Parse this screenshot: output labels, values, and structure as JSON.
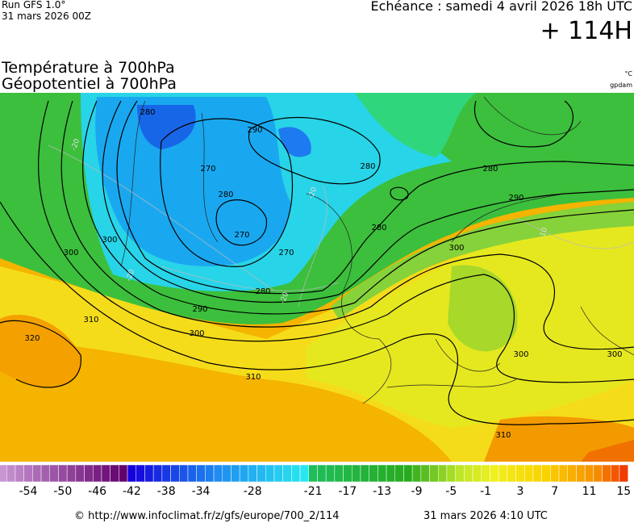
{
  "header": {
    "run": "Run GFS 1.0°",
    "run_date": "31 mars 2026 00Z",
    "valid": "Echéance : samedi 4 avril 2026 18h UTC",
    "lead": "+ 114H"
  },
  "titles": {
    "temperature": "Température à 700hPa",
    "geopotential": "Géopotentiel à 700hPa",
    "temp_unit": "°C",
    "geo_unit": "gpdam"
  },
  "contour_labels": [
    "280",
    "270",
    "280",
    "290",
    "270",
    "270",
    "280",
    "290",
    "300",
    "310",
    "320",
    "280",
    "280",
    "280",
    "290",
    "300",
    "300",
    "300",
    "310",
    "310",
    "300",
    "300"
  ],
  "isotherm_labels": [
    "-20",
    "-20",
    "-20",
    "-20",
    "-10"
  ],
  "scale_labels": [
    -54,
    -50,
    -46,
    -42,
    -38,
    -34,
    -28,
    -21,
    -17,
    -13,
    -9,
    -5,
    -1,
    3,
    7,
    11,
    15
  ],
  "footer": {
    "url": "© http://www.infoclimat.fr/z/gfs/europe/700_2/114",
    "stamp": "31 mars 2026  4:10 UTC"
  }
}
